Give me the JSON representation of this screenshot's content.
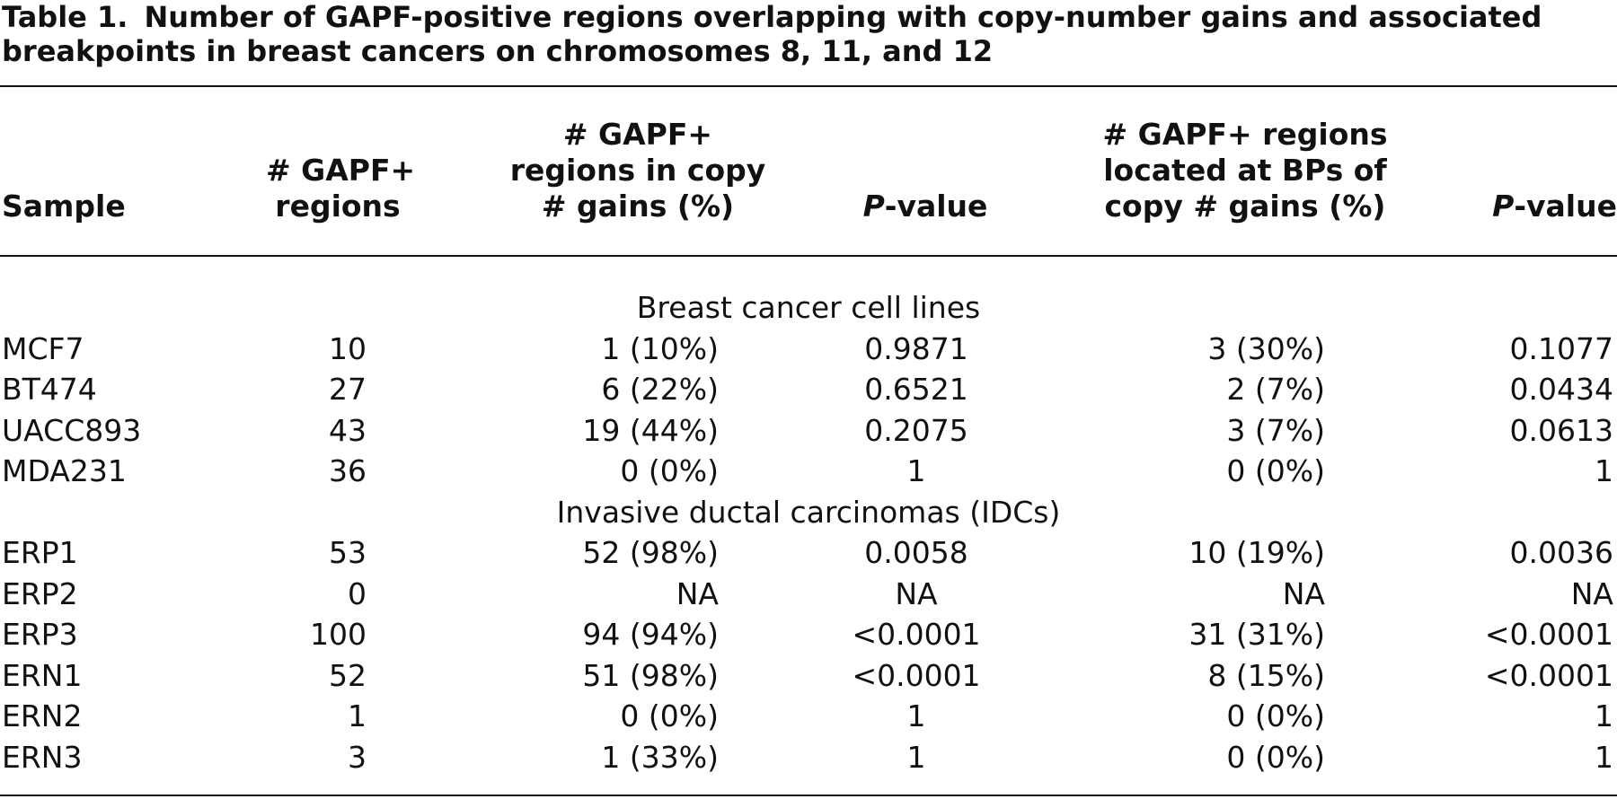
{
  "caption": {
    "label": "Table 1.",
    "text": "Number of GAPF-positive regions overlapping with copy-number gains and associated breakpoints in breast cancers on chromosomes 8, 11, and 12"
  },
  "headers": {
    "sample": [
      "Sample"
    ],
    "n_regions": [
      "# GAPF+",
      "regions"
    ],
    "in_gains": [
      "# GAPF+",
      "regions in copy",
      "# gains (%)"
    ],
    "p1_italic": "P",
    "p1_rest": "-value",
    "at_bps": [
      "# GAPF+ regions",
      "located at BPs of",
      "copy # gains (%)"
    ],
    "p2_italic": "P",
    "p2_rest": "-value"
  },
  "sections": [
    {
      "title": "Breast cancer cell lines",
      "rows": [
        {
          "sample": "MCF7",
          "n": "10",
          "gain": "1 (10%)",
          "p1": "0.9871",
          "bp": "3 (30%)",
          "p2": "0.1077"
        },
        {
          "sample": "BT474",
          "n": "27",
          "gain": "6 (22%)",
          "p1": "0.6521",
          "bp": "2 (7%)",
          "p2": "0.0434"
        },
        {
          "sample": "UACC893",
          "n": "43",
          "gain": "19 (44%)",
          "p1": "0.2075",
          "bp": "3 (7%)",
          "p2": "0.0613"
        },
        {
          "sample": "MDA231",
          "n": "36",
          "gain": "0 (0%)",
          "p1": "1",
          "bp": "0 (0%)",
          "p2": "1"
        }
      ]
    },
    {
      "title": "Invasive ductal carcinomas (IDCs)",
      "rows": [
        {
          "sample": "ERP1",
          "n": "53",
          "gain": "52 (98%)",
          "p1": "0.0058",
          "bp": "10 (19%)",
          "p2": "0.0036"
        },
        {
          "sample": "ERP2",
          "n": "0",
          "gain": "NA",
          "p1": "NA",
          "bp": "NA",
          "p2": "NA"
        },
        {
          "sample": "ERP3",
          "n": "100",
          "gain": "94 (94%)",
          "p1": "<0.0001",
          "bp": "31 (31%)",
          "p2": "<0.0001"
        },
        {
          "sample": "ERN1",
          "n": "52",
          "gain": "51 (98%)",
          "p1": "<0.0001",
          "bp": "8 (15%)",
          "p2": "<0.0001"
        },
        {
          "sample": "ERN2",
          "n": "1",
          "gain": "0 (0%)",
          "p1": "1",
          "bp": "0 (0%)",
          "p2": "1"
        },
        {
          "sample": "ERN3",
          "n": "3",
          "gain": "1 (33%)",
          "p1": "1",
          "bp": "0 (0%)",
          "p2": "1"
        }
      ]
    }
  ]
}
